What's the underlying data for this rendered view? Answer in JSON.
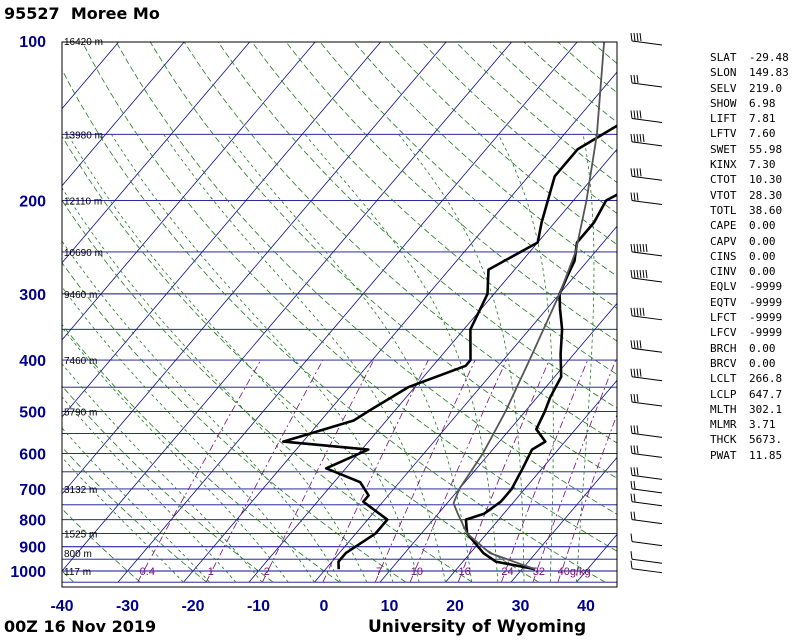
{
  "header": {
    "station_id": "95527",
    "station_name": "Moree Mo"
  },
  "footer": {
    "time": "00Z 16 Nov 2019",
    "org": "University of Wyoming"
  },
  "colors": {
    "isobar": "#0b0b8f",
    "isotherm": "#0b0b8f",
    "dry_adiabat": "#1e7a1e",
    "moist_adiabat": "#1e7a1e",
    "mixing_ratio": "#7a0a7a",
    "parcel": "#555555",
    "pressure_label": "#00008b"
  },
  "chart_data": {
    "type": "line",
    "chart_kind": "skew-T log-P",
    "xlabel": "",
    "ylabel": "",
    "xlim": [
      -40,
      45
    ],
    "ylim": [
      1000,
      100
    ],
    "y_scale": "log",
    "x_ticks": [
      "-40",
      "-30",
      "-20",
      "-10",
      "0",
      "10",
      "20",
      "30",
      "40"
    ],
    "y_ticks": [
      "100",
      "200",
      "300",
      "400",
      "500",
      "600",
      "700",
      "800",
      "900",
      "1000"
    ],
    "height_labels": [
      {
        "p": 100,
        "label": "16420 m"
      },
      {
        "p": 150,
        "label": "13980 m"
      },
      {
        "p": 200,
        "label": "12110 m"
      },
      {
        "p": 250,
        "label": "10690 m"
      },
      {
        "p": 300,
        "label": "9460 m"
      },
      {
        "p": 400,
        "label": "7460 m"
      },
      {
        "p": 500,
        "label": "5790 m"
      },
      {
        "p": 700,
        "label": "3132 m"
      },
      {
        "p": 850,
        "label": "1525 m"
      },
      {
        "p": 925,
        "label": "800 m"
      },
      {
        "p": 1000,
        "label": "117 m"
      }
    ],
    "mixing_ratio_labels": [
      "0.4",
      "1",
      "2",
      "7",
      "10",
      "16",
      "24",
      "32",
      "40g/kg"
    ],
    "series": [
      {
        "points": [
          [
            32,
            992
          ],
          [
            25,
            960
          ],
          [
            22,
            925
          ],
          [
            17,
            850
          ],
          [
            15,
            800
          ],
          [
            17,
            780
          ],
          [
            18,
            740
          ],
          [
            18,
            700
          ],
          [
            17,
            640
          ],
          [
            16,
            590
          ],
          [
            17,
            570
          ],
          [
            14,
            540
          ],
          [
            13,
            500
          ],
          [
            12,
            470
          ],
          [
            11,
            430
          ],
          [
            8,
            390
          ],
          [
            5,
            350
          ],
          [
            2,
            320
          ],
          [
            0,
            300
          ],
          [
            -1,
            280
          ],
          [
            -2,
            260
          ],
          [
            -4,
            240
          ],
          [
            -4,
            220
          ],
          [
            -5,
            200
          ],
          [
            1,
            170
          ],
          [
            5,
            150
          ],
          [
            6,
            130
          ],
          [
            8,
            100
          ]
        ]
      },
      {
        "points": [
          [
            2,
            992
          ],
          [
            1,
            960
          ],
          [
            1,
            925
          ],
          [
            3,
            850
          ],
          [
            3,
            800
          ],
          [
            -3,
            740
          ],
          [
            -3,
            720
          ],
          [
            -6,
            680
          ],
          [
            -13,
            640
          ],
          [
            -9,
            590
          ],
          [
            -23,
            570
          ],
          [
            -15,
            520
          ],
          [
            -14,
            500
          ],
          [
            -11,
            450
          ],
          [
            -5,
            410
          ],
          [
            -5,
            400
          ],
          [
            -9,
            350
          ],
          [
            -11,
            300
          ],
          [
            -14,
            270
          ],
          [
            -10,
            240
          ],
          [
            -12,
            220
          ],
          [
            -16,
            180
          ],
          [
            -16,
            160
          ],
          [
            -10,
            130
          ],
          [
            -3,
            100
          ]
        ]
      },
      {
        "points": [
          [
            32,
            992
          ],
          [
            23,
            925
          ],
          [
            17,
            850
          ],
          [
            13,
            780
          ],
          [
            11,
            745
          ],
          [
            10,
            700
          ],
          [
            9,
            600
          ],
          [
            7,
            500
          ],
          [
            4,
            400
          ],
          [
            0,
            300
          ],
          [
            -3,
            250
          ],
          [
            -8,
            200
          ],
          [
            -15,
            150
          ],
          [
            -26,
            100
          ]
        ]
      }
    ],
    "wind_barbs": [
      {
        "p": 100,
        "speed_kt": 35
      },
      {
        "p": 120,
        "speed_kt": 25
      },
      {
        "p": 140,
        "speed_kt": 40
      },
      {
        "p": 155,
        "speed_kt": 50
      },
      {
        "p": 180,
        "speed_kt": 35
      },
      {
        "p": 200,
        "speed_kt": 30
      },
      {
        "p": 250,
        "speed_kt": 60
      },
      {
        "p": 280,
        "speed_kt": 55
      },
      {
        "p": 330,
        "speed_kt": 45
      },
      {
        "p": 380,
        "speed_kt": 40
      },
      {
        "p": 430,
        "speed_kt": 35
      },
      {
        "p": 480,
        "speed_kt": 30
      },
      {
        "p": 550,
        "speed_kt": 30
      },
      {
        "p": 600,
        "speed_kt": 25
      },
      {
        "p": 660,
        "speed_kt": 25
      },
      {
        "p": 700,
        "speed_kt": 20
      },
      {
        "p": 740,
        "speed_kt": 15
      },
      {
        "p": 800,
        "speed_kt": 15
      },
      {
        "p": 880,
        "speed_kt": 10
      },
      {
        "p": 950,
        "speed_kt": 5
      },
      {
        "p": 990,
        "speed_kt": 5
      }
    ]
  },
  "indices": [
    {
      "name": "SLAT",
      "value": "-29.48"
    },
    {
      "name": "SLON",
      "value": "149.83"
    },
    {
      "name": "SELV",
      "value": "219.0"
    },
    {
      "name": "SHOW",
      "value": "6.98"
    },
    {
      "name": "LIFT",
      "value": "7.81"
    },
    {
      "name": "LFTV",
      "value": "7.60"
    },
    {
      "name": "SWET",
      "value": "55.98"
    },
    {
      "name": "KINX",
      "value": "7.30"
    },
    {
      "name": "CTOT",
      "value": "10.30"
    },
    {
      "name": "VTOT",
      "value": "28.30"
    },
    {
      "name": "TOTL",
      "value": "38.60"
    },
    {
      "name": "CAPE",
      "value": "0.00"
    },
    {
      "name": "CAPV",
      "value": "0.00"
    },
    {
      "name": "CINS",
      "value": "0.00"
    },
    {
      "name": "CINV",
      "value": "0.00"
    },
    {
      "name": "EQLV",
      "value": "-9999"
    },
    {
      "name": "EQTV",
      "value": "-9999"
    },
    {
      "name": "LFCT",
      "value": "-9999"
    },
    {
      "name": "LFCV",
      "value": "-9999"
    },
    {
      "name": "BRCH",
      "value": "0.00"
    },
    {
      "name": "BRCV",
      "value": "0.00"
    },
    {
      "name": "LCLT",
      "value": "266.8"
    },
    {
      "name": "LCLP",
      "value": "647.7"
    },
    {
      "name": "MLTH",
      "value": "302.1"
    },
    {
      "name": "MLMR",
      "value": "3.71"
    },
    {
      "name": "THCK",
      "value": "5673."
    },
    {
      "name": "PWAT",
      "value": "11.85"
    }
  ]
}
